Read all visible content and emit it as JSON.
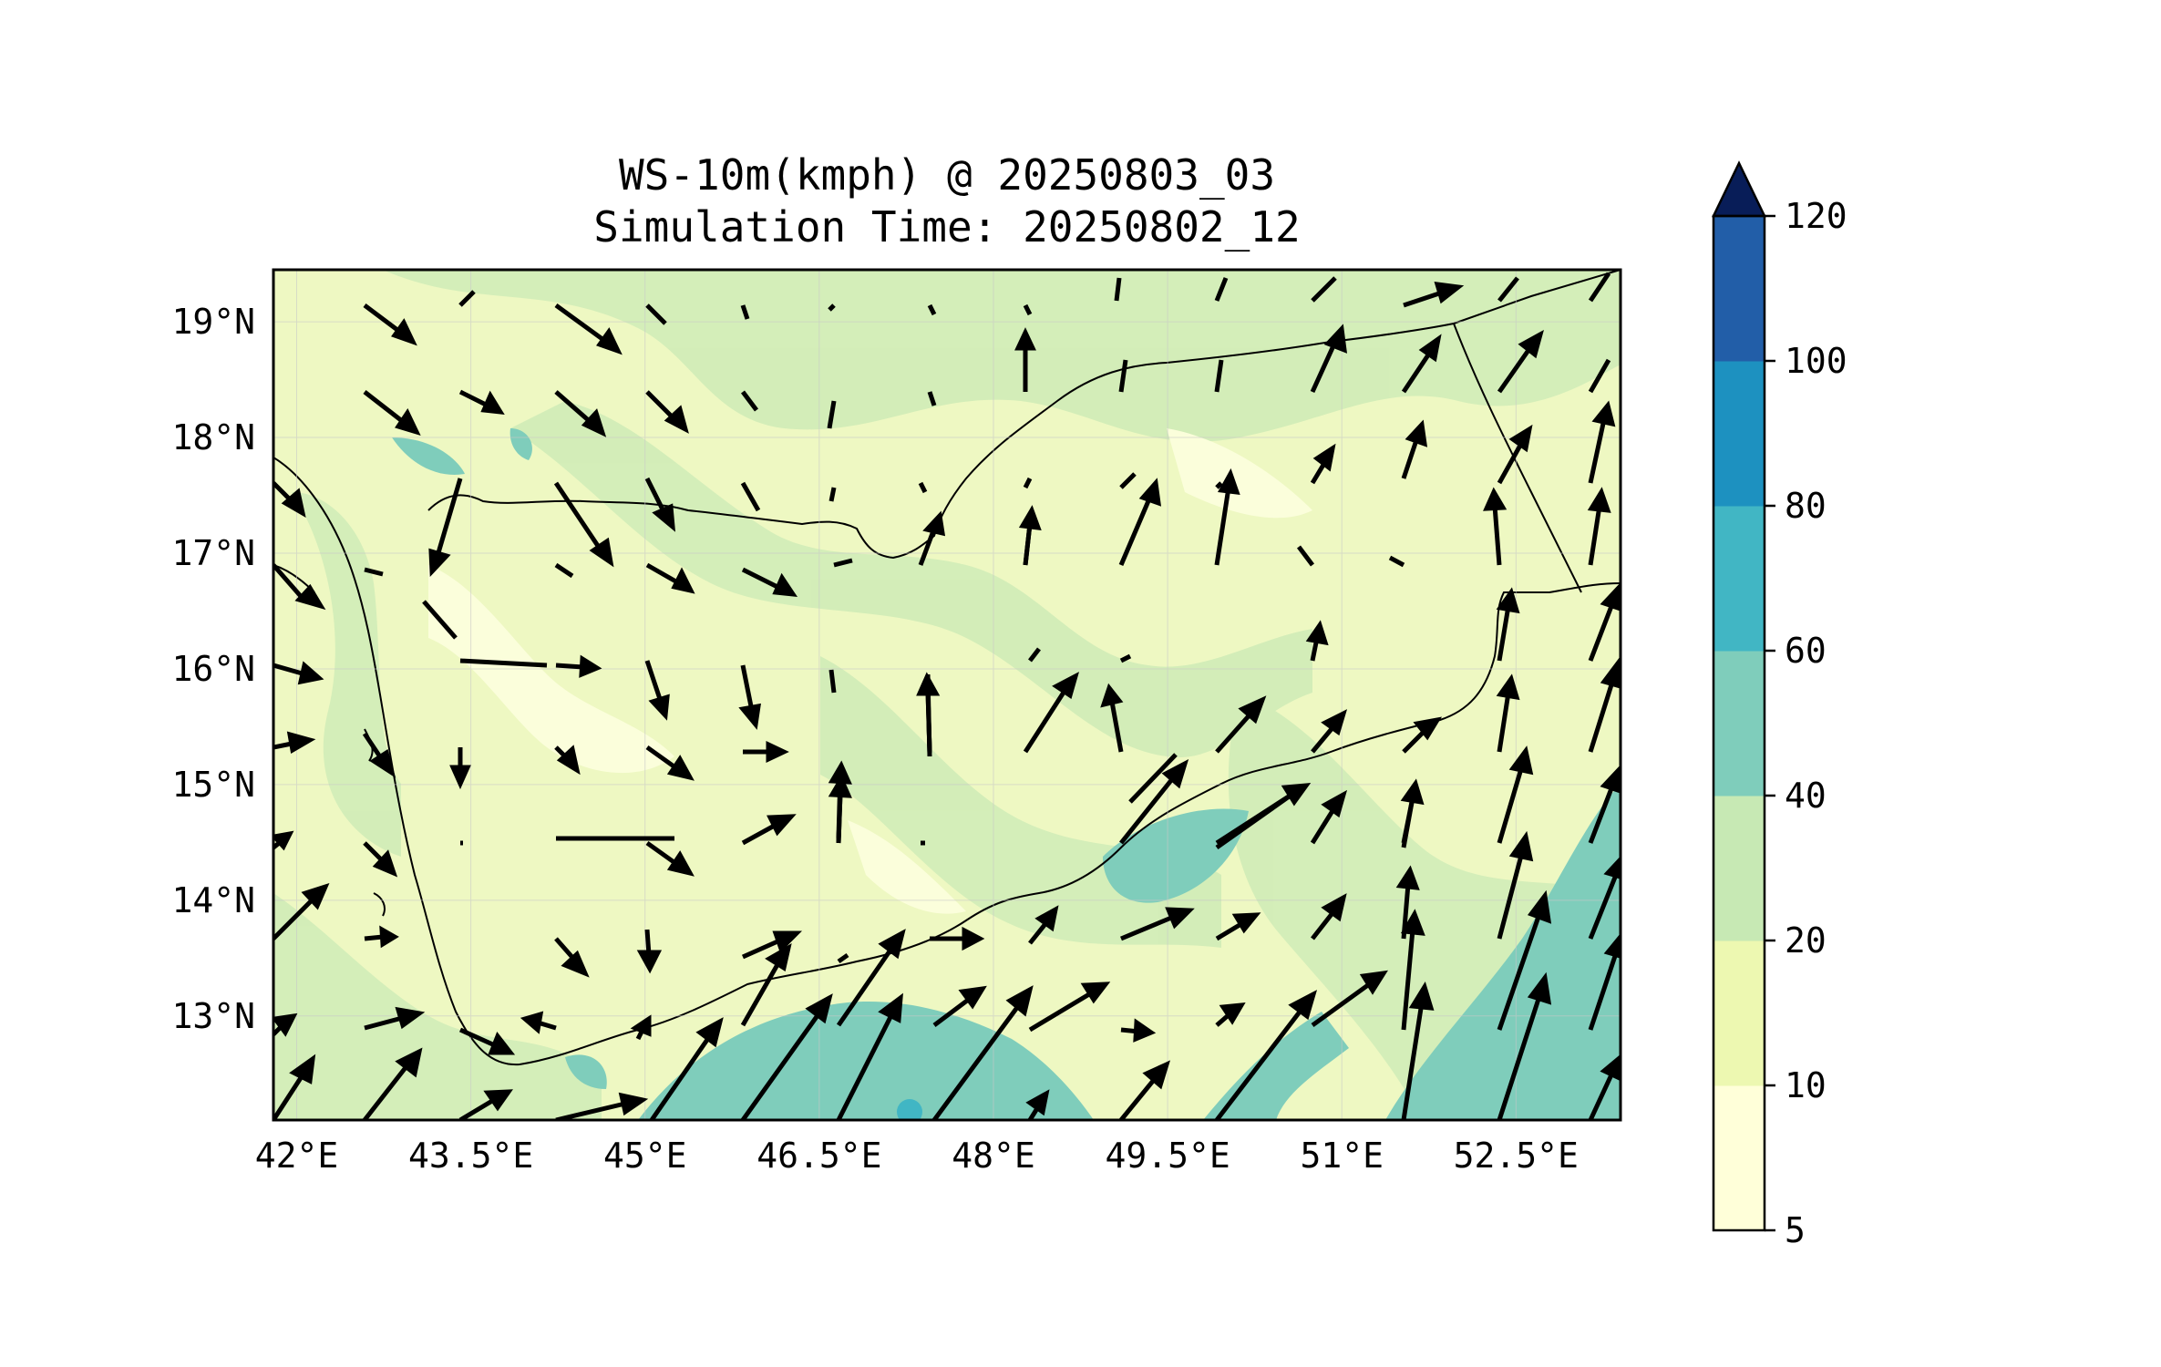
{
  "title_line1": "WS-10m(kmph) @ 20250803_03",
  "title_line2": "Simulation Time: 20250802_12",
  "map": {
    "lon_range": [
      41.8,
      53.4
    ],
    "lat_range": [
      12.1,
      19.45
    ],
    "lon_ticks": [
      42,
      43.5,
      45,
      46.5,
      48,
      49.5,
      51,
      52.5
    ],
    "lon_labels": [
      "42°E",
      "43.5°E",
      "45°E",
      "46.5°E",
      "48°E",
      "49.5°E",
      "51°E",
      "52.5°E"
    ],
    "lat_ticks": [
      13,
      14,
      15,
      16,
      17,
      18,
      19
    ],
    "lat_labels": [
      "13°N",
      "14°N",
      "15°N",
      "16°N",
      "17°N",
      "18°N",
      "19°N"
    ],
    "grid": true
  },
  "colorbar": {
    "levels": [
      5,
      10,
      20,
      40,
      60,
      80,
      100,
      120
    ],
    "labels": [
      "5",
      "10",
      "20",
      "40",
      "60",
      "80",
      "100",
      "120"
    ],
    "colors": [
      "#ffffd9",
      "#edf8b1",
      "#c7e9b4",
      "#7fcdbb",
      "#41b6c4",
      "#1d91c0",
      "#225ea8",
      "#253494"
    ],
    "extend_color": "#081d58",
    "extend": "max"
  }
}
